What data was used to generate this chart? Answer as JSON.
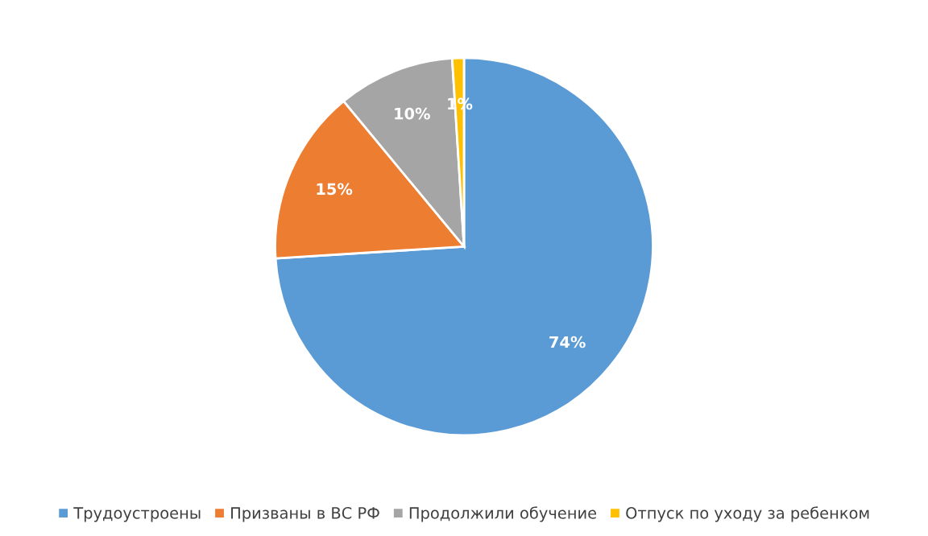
{
  "chart_data": {
    "type": "pie",
    "categories": [
      "Трудоустроены",
      "Призваны в ВС РФ",
      "Продолжили обучение",
      "Отпуск по уходу за ребенком"
    ],
    "values": [
      74,
      15,
      10,
      1
    ],
    "colors": [
      "#5b9bd5",
      "#ed7d31",
      "#a5a5a5",
      "#ffc000"
    ],
    "value_labels": [
      "74%",
      "15%",
      "10%",
      "1%"
    ],
    "legend": "bottom"
  }
}
